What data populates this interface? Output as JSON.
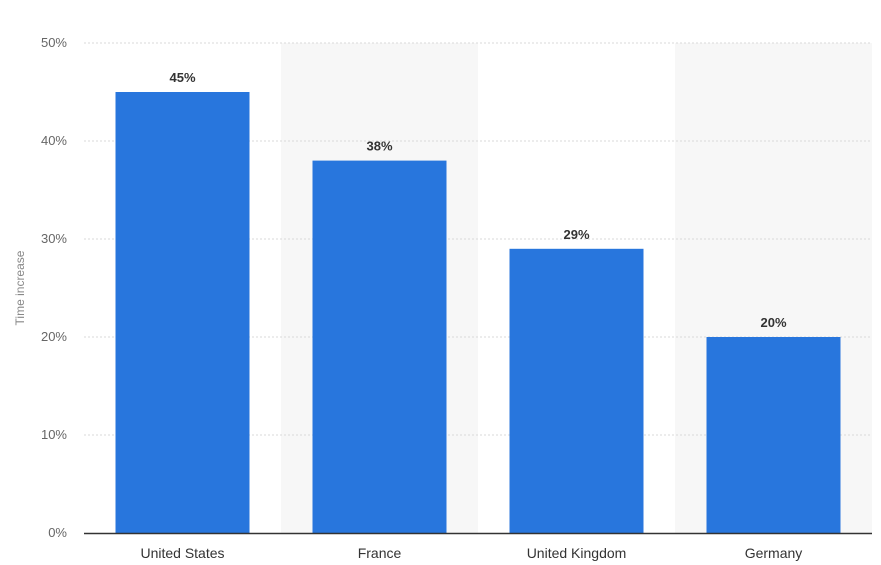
{
  "chart_data": {
    "type": "bar",
    "categories": [
      "United States",
      "France",
      "United Kingdom",
      "Germany"
    ],
    "values": [
      45,
      38,
      29,
      20
    ],
    "data_labels": [
      "45%",
      "38%",
      "29%",
      "20%"
    ],
    "ylabel": "Time increase",
    "ylim": [
      0,
      50
    ],
    "yticks": [
      0,
      10,
      20,
      30,
      40,
      50
    ],
    "ytick_labels": [
      "0%",
      "10%",
      "20%",
      "30%",
      "40%",
      "50%"
    ],
    "grid": true,
    "legend": "none",
    "colors": {
      "bar": "#2876dd",
      "band": "#f7f7f7",
      "grid": "#d8d8d8",
      "axis": "#333333"
    }
  }
}
